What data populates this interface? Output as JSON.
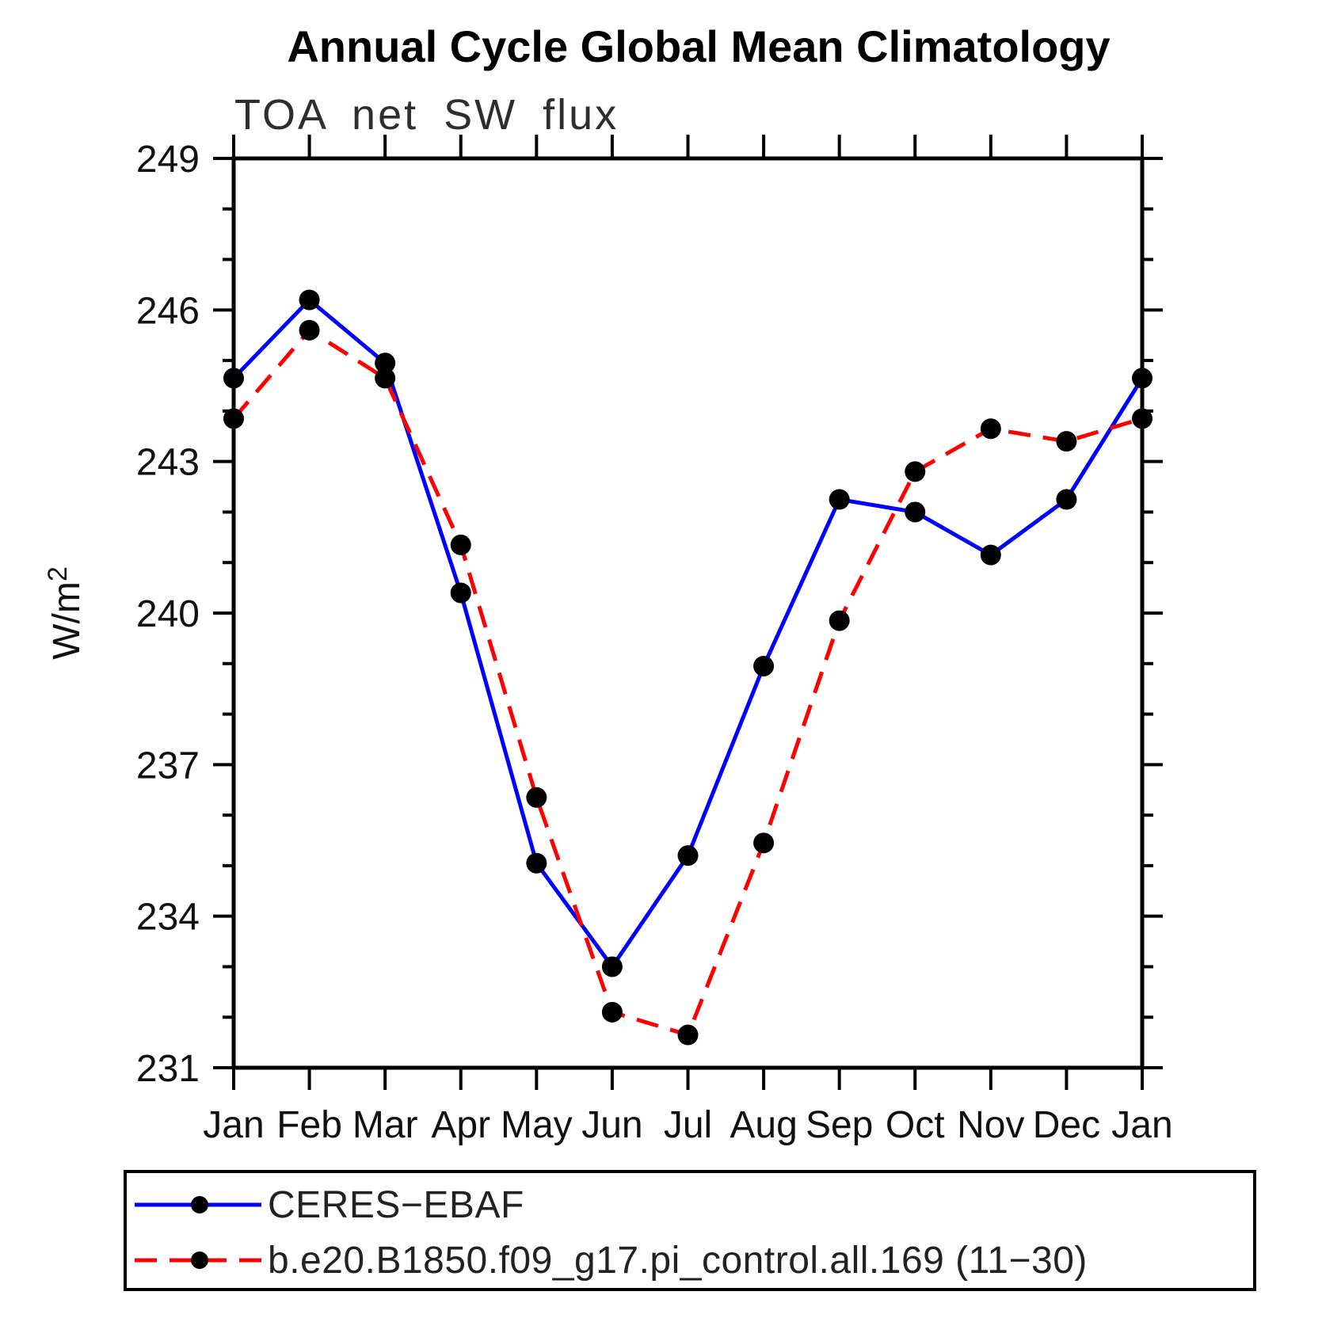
{
  "chart_data": {
    "type": "line",
    "title": "Annual Cycle Global Mean Climatology",
    "subtitle": "TOA net SW flux",
    "ylabel": "W/m²",
    "xlabel": "",
    "x_tick_labels": [
      "Jan",
      "Feb",
      "Mar",
      "Apr",
      "May",
      "Jun",
      "Jul",
      "Aug",
      "Sep",
      "Oct",
      "Nov",
      "Dec",
      "Jan"
    ],
    "y_ticks": [
      231,
      234,
      237,
      240,
      243,
      246,
      249
    ],
    "y_minor_step": 1,
    "ylim": [
      231,
      249
    ],
    "grid": "off",
    "legend_position": "bottom-left-box",
    "frame_color": "#000000",
    "marker": "filled-circle",
    "marker_color": "#000000",
    "series": [
      {
        "name": "CERES−EBAF",
        "color": "#0000ff",
        "line_style": "solid",
        "values": [
          244.65,
          246.2,
          244.95,
          240.4,
          235.05,
          233.0,
          235.2,
          238.95,
          242.25,
          242.0,
          241.15,
          242.25,
          244.65
        ]
      },
      {
        "name": "b.e20.B1850.f09_g17.pi_control.all.169 (11−30)",
        "color": "#ff0000",
        "line_style": "dashed",
        "values": [
          243.85,
          245.6,
          244.65,
          241.35,
          236.35,
          232.1,
          231.65,
          235.45,
          239.85,
          242.8,
          243.65,
          243.4,
          243.85
        ]
      }
    ]
  }
}
